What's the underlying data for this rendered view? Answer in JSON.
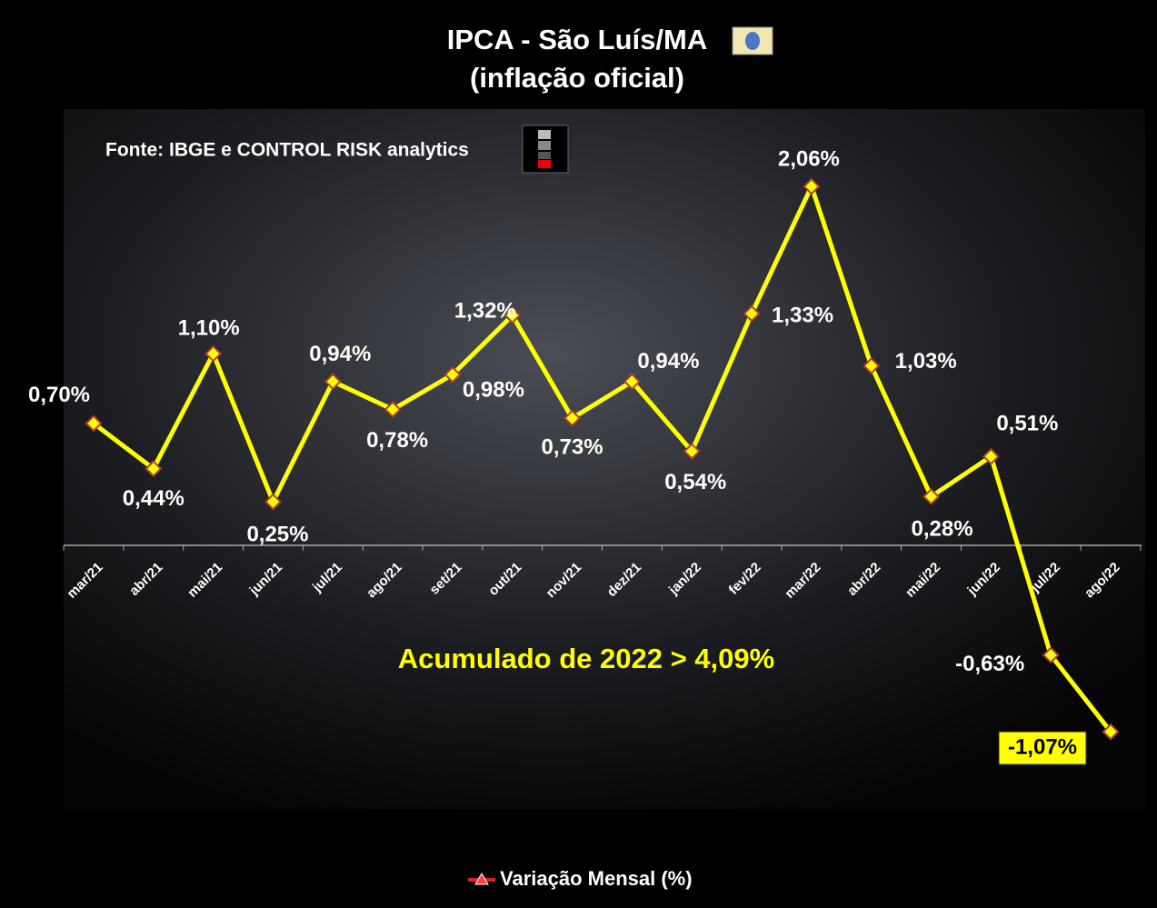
{
  "chart_data": {
    "type": "line",
    "title": "IPCA - São Luís/MA",
    "subtitle": "(inflação oficial)",
    "source": "Fonte: IBGE e CONTROL RISK analytics",
    "annotation": "Acumulado de 2022 > 4,09%",
    "categories": [
      "mar/21",
      "abr/21",
      "mai/21",
      "jun/21",
      "jul/21",
      "ago/21",
      "set/21",
      "out/21",
      "nov/21",
      "dez/21",
      "jan/22",
      "fev/22",
      "mar/22",
      "abr/22",
      "mai/22",
      "jun/22",
      "jul/22",
      "ago/22"
    ],
    "series": [
      {
        "name": "Variação Mensal (%)",
        "color": "#ffff00",
        "values": [
          0.7,
          0.44,
          1.1,
          0.25,
          0.94,
          0.78,
          0.98,
          1.32,
          0.73,
          0.94,
          0.54,
          1.33,
          2.06,
          1.03,
          0.28,
          0.51,
          -0.63,
          -1.07
        ],
        "value_labels": [
          "0,70%",
          "0,44%",
          "1,10%",
          "0,25%",
          "0,94%",
          "0,78%",
          "0,98%",
          "1,32%",
          "0,73%",
          "0,94%",
          "0,54%",
          "1,33%",
          "2,06%",
          "1,03%",
          "0,28%",
          "0,51%",
          "-0,63%",
          "-1,07%"
        ]
      }
    ],
    "ylim": [
      -1.5,
      2.5
    ],
    "legend": "bottom"
  }
}
